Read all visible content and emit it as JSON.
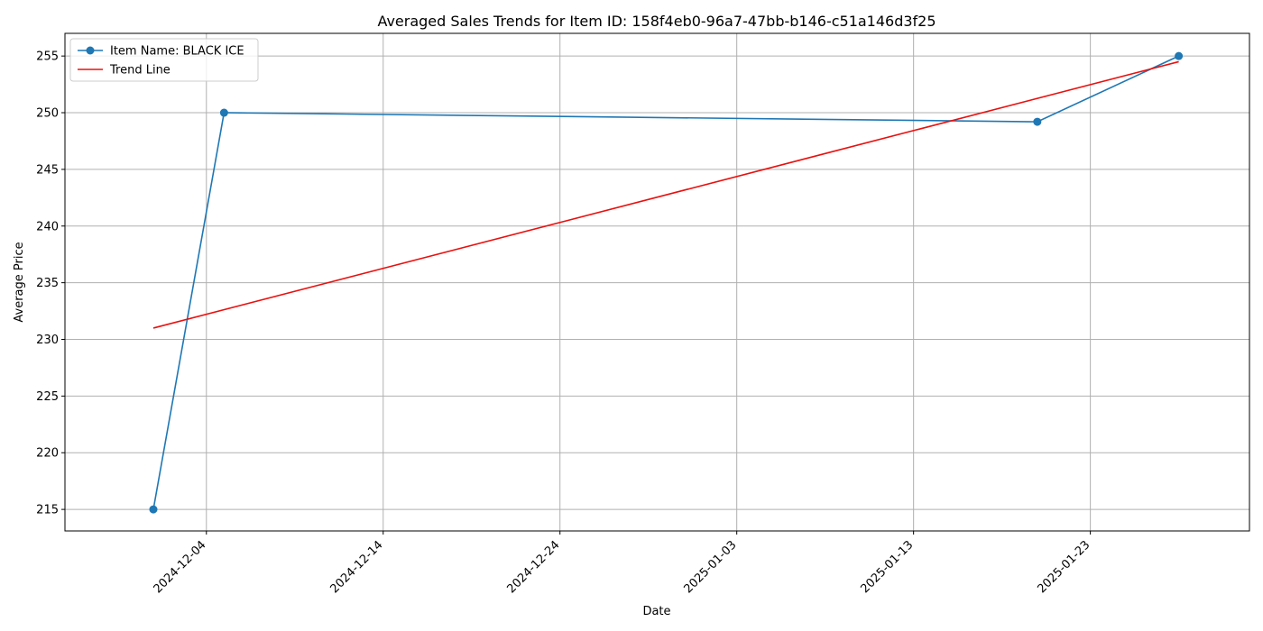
{
  "chart_data": {
    "type": "line",
    "title": "Averaged Sales Trends for Item ID: 158f4eb0-96a7-47bb-b146-c51a146d3f25",
    "xlabel": "Date",
    "ylabel": "Average Price",
    "x_type": "date",
    "xlim": [
      "2024-11-26",
      "2025-02-01"
    ],
    "ylim": [
      213.1,
      257.0
    ],
    "x_ticks": [
      "2024-12-04",
      "2024-12-14",
      "2024-12-24",
      "2025-01-03",
      "2025-01-13",
      "2025-01-23"
    ],
    "y_ticks": [
      215,
      220,
      225,
      230,
      235,
      240,
      245,
      250,
      255
    ],
    "grid": true,
    "legend_position": "top-left",
    "series": [
      {
        "name": "Item Name: BLACK ICE",
        "color": "#1f77b4",
        "marker": "circle",
        "x": [
          "2024-12-01",
          "2024-12-05",
          "2025-01-20",
          "2025-01-28"
        ],
        "y": [
          215.0,
          250.0,
          249.2,
          255.0
        ]
      },
      {
        "name": "Trend Line",
        "color": "#e8110f",
        "marker": "none",
        "x": [
          "2024-12-01",
          "2025-01-28"
        ],
        "y": [
          231.0,
          254.5
        ]
      }
    ]
  }
}
